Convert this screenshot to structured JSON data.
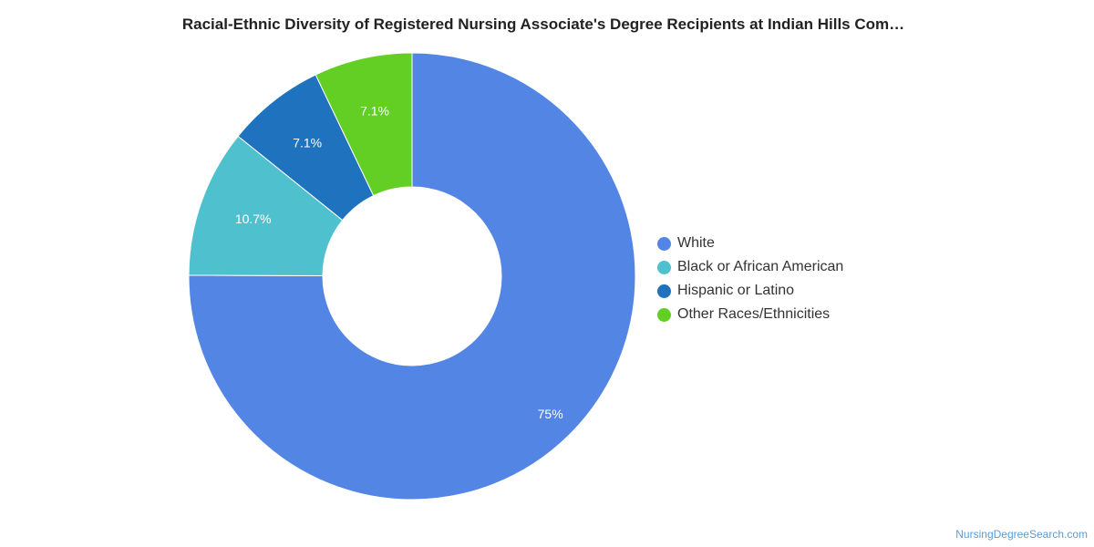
{
  "title": "Racial-Ethnic Diversity of Registered Nursing Associate's Degree Recipients at Indian Hills Com…",
  "source": "NursingDegreeSearch.com",
  "chart_data": {
    "type": "pie",
    "donut": true,
    "title": "Racial-Ethnic Diversity of Registered Nursing Associate's Degree Recipients at Indian Hills Com…",
    "legend_position": "right",
    "slices": [
      {
        "label": "White",
        "value": 75,
        "display": "75%",
        "color": "#5386E4"
      },
      {
        "label": "Black or African American",
        "value": 10.7,
        "display": "10.7%",
        "color": "#4FC1CE"
      },
      {
        "label": "Hispanic or Latino",
        "value": 7.1,
        "display": "7.1%",
        "color": "#1F72BE"
      },
      {
        "label": "Other Races/Ethnicities",
        "value": 7.1,
        "display": "7.1%",
        "color": "#63CE24"
      }
    ]
  }
}
